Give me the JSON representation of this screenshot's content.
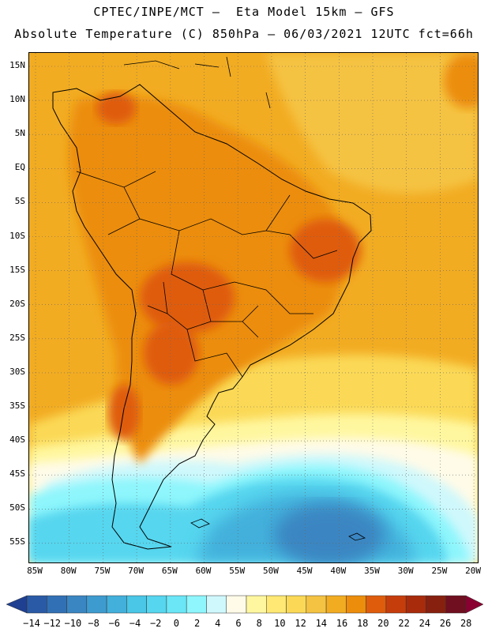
{
  "header": {
    "line1": "CPTEC/INPE/MCT –  Eta Model 15km – GFS",
    "line2": "Absolute Temperature (C) 850hPa – 06/03/2021 12UTC fct=66h"
  },
  "map": {
    "lat_labels": [
      "15N",
      "10N",
      "5N",
      "EQ",
      "5S",
      "10S",
      "15S",
      "20S",
      "25S",
      "30S",
      "35S",
      "40S",
      "45S",
      "50S",
      "55S"
    ],
    "lon_labels": [
      "85W",
      "80W",
      "75W",
      "70W",
      "65W",
      "60W",
      "55W",
      "50W",
      "45W",
      "40W",
      "35W",
      "30W",
      "25W",
      "20W"
    ]
  },
  "colorbar": {
    "labels": [
      "-14",
      "-12",
      "-10",
      "-8",
      "-6",
      "-4",
      "-2",
      "0",
      "2",
      "4",
      "6",
      "8",
      "10",
      "12",
      "14",
      "16",
      "18",
      "20",
      "22",
      "24",
      "26",
      "28"
    ],
    "colors": [
      "#1f3f91",
      "#2a5aa6",
      "#3270b5",
      "#3a86c2",
      "#3e9bcf",
      "#42b0db",
      "#4ac6e6",
      "#56d6ef",
      "#6ae6f6",
      "#8ef6fc",
      "#cff8fc",
      "#fffbe8",
      "#fff79f",
      "#ffe873",
      "#fbd957",
      "#f5c342",
      "#f2ac22",
      "#ec8d0c",
      "#df5c0c",
      "#c63d0c",
      "#a82b0c",
      "#87200f",
      "#6f0f1f",
      "#8a0030"
    ]
  }
}
